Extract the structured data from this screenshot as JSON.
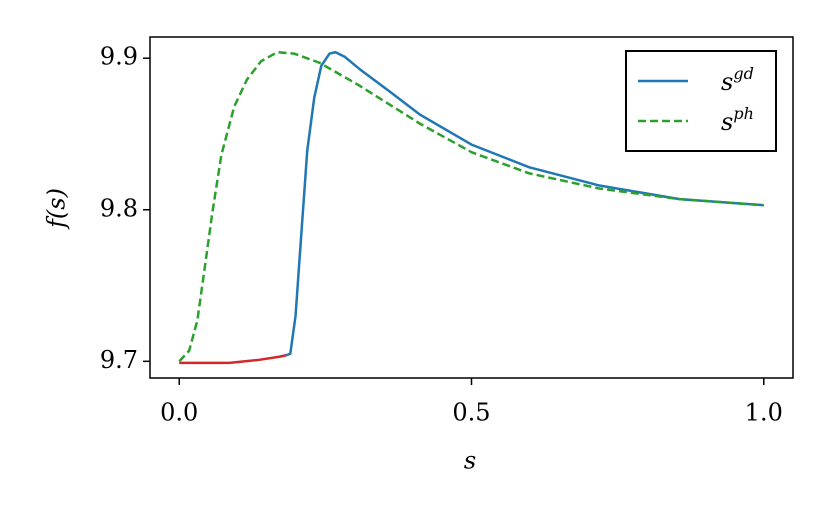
{
  "chart_data": {
    "type": "line",
    "xlabel": "s",
    "ylabel": "f(s)",
    "xlim": [
      -0.05,
      1.05
    ],
    "xticks": [
      {
        "value": 0,
        "label": "0.0"
      },
      {
        "value": 0.5,
        "label": "0.5"
      },
      {
        "value": 1,
        "label": "1.0"
      }
    ],
    "ylim": [
      9.689,
      9.914
    ],
    "yticks": [
      9.7,
      9.8,
      9.9
    ],
    "legend": "upper right",
    "series": [
      {
        "name": "s^gd",
        "color": "#1f77b4",
        "dash": false,
        "x": [
          0.183,
          0.19,
          0.199,
          0.205,
          0.219,
          0.231,
          0.243,
          0.257,
          0.267,
          0.283,
          0.308,
          0.36,
          0.411,
          0.5,
          0.599,
          0.719,
          0.856,
          1.0
        ],
        "values": [
          9.704,
          9.705,
          9.73,
          9.763,
          9.839,
          9.874,
          9.895,
          9.903,
          9.904,
          9.901,
          9.893,
          9.878,
          9.863,
          9.843,
          9.828,
          9.816,
          9.807,
          9.803
        ]
      },
      {
        "name": "s^ph",
        "color": "#2ca02c",
        "dash": true,
        "x": [
          0,
          0.017,
          0.031,
          0.043,
          0.057,
          0.072,
          0.094,
          0.116,
          0.14,
          0.168,
          0.197,
          0.24,
          0.308,
          0.411,
          0.5,
          0.599,
          0.719,
          0.856,
          1.0
        ],
        "values": [
          9.7,
          9.707,
          9.727,
          9.76,
          9.799,
          9.836,
          9.868,
          9.886,
          9.898,
          9.904,
          9.903,
          9.897,
          9.882,
          9.857,
          9.838,
          9.824,
          9.814,
          9.807,
          9.803
        ]
      },
      {
        "color": "#d62728",
        "dash": false,
        "x": [
          0,
          0.086,
          0.137,
          0.171,
          0.183
        ],
        "values": [
          9.699,
          9.699,
          9.701,
          9.703,
          9.704
        ]
      }
    ]
  }
}
